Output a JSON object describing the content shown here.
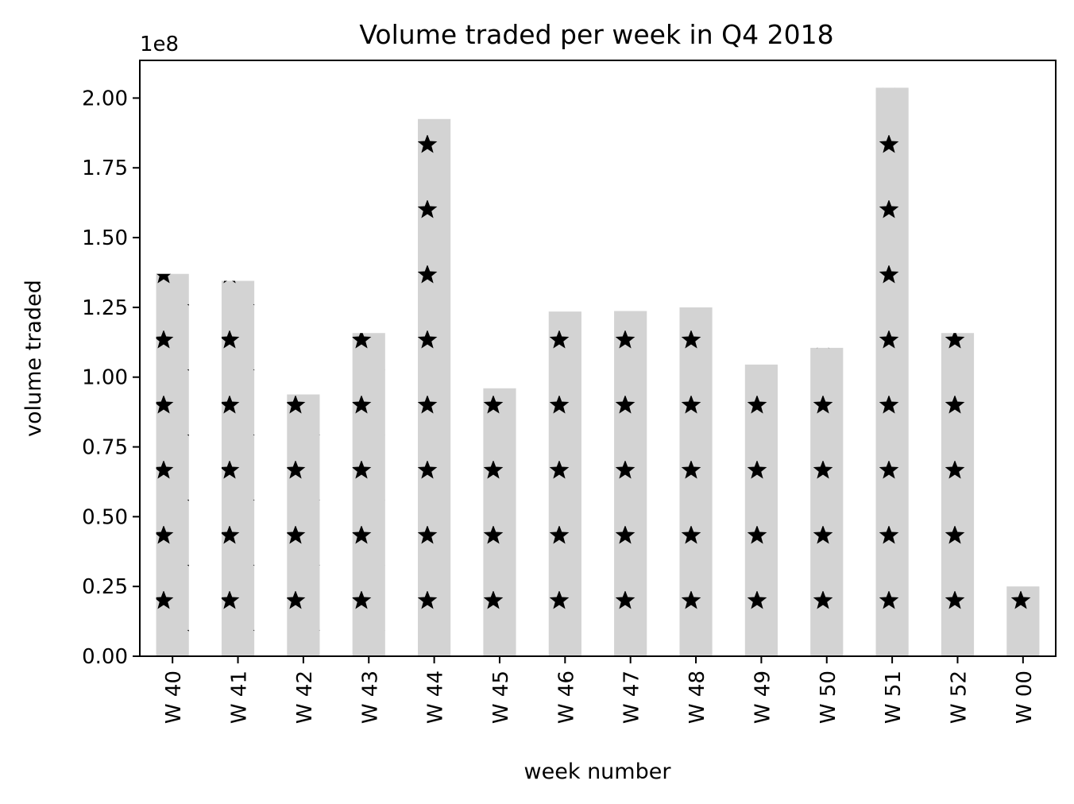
{
  "chart_data": {
    "type": "bar",
    "title": "Volume traded per week in Q4 2018",
    "xlabel": "week number",
    "ylabel": "volume traded",
    "offset_label": "1e8",
    "categories": [
      "W 40",
      "W 41",
      "W 42",
      "W 43",
      "W 44",
      "W 45",
      "W 46",
      "W 47",
      "W 48",
      "W 49",
      "W 50",
      "W 51",
      "W 52",
      "W 00"
    ],
    "values": [
      137000000,
      134500000,
      93800000,
      115800000,
      192500000,
      96000000,
      123500000,
      123700000,
      125000000,
      104500000,
      110500000,
      203700000,
      115800000,
      25000000
    ],
    "ylim": [
      0,
      213500000
    ],
    "yticks": [
      0,
      25000000,
      50000000,
      75000000,
      100000000,
      125000000,
      150000000,
      175000000,
      200000000
    ],
    "ytick_labels": [
      "0.00",
      "0.25",
      "0.50",
      "0.75",
      "1.00",
      "1.25",
      "1.50",
      "1.75",
      "2.00"
    ],
    "grid": false,
    "legend": "none",
    "bar_fill": "#d3d3d3",
    "hatch": "star",
    "hatch_color": "#000000"
  }
}
